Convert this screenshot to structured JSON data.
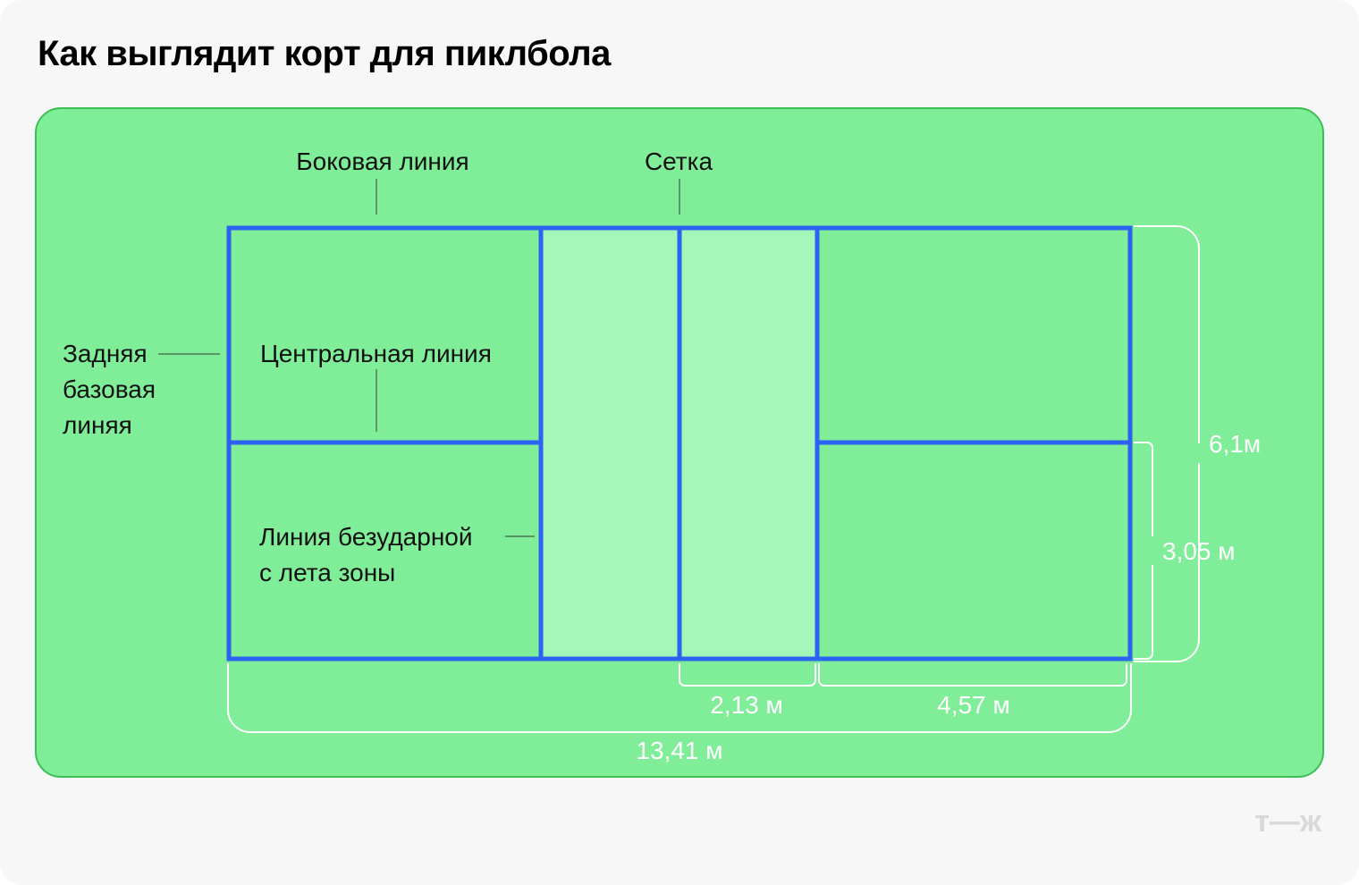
{
  "title": "Как выглядит корт для пиклбола",
  "labels": {
    "sideline": "Боковая линия",
    "net": "Сетка",
    "baseline": [
      "Задняя",
      "базовая",
      "линяя"
    ],
    "centerline": "Центральная линия",
    "kitchen": [
      "Линия безударной",
      "с лета зоны"
    ]
  },
  "dimensions": {
    "width_full": "6,1м",
    "width_half": "3,05 м",
    "kitchen_depth": "2,13 м",
    "service_depth": "4,57 м",
    "length": "13,41 м"
  },
  "logo": "т—ж",
  "colors": {
    "background": "#80ed99",
    "kitchen": "#a5f6b9",
    "lines": "#2b63f5",
    "border": "#3cbf55"
  }
}
